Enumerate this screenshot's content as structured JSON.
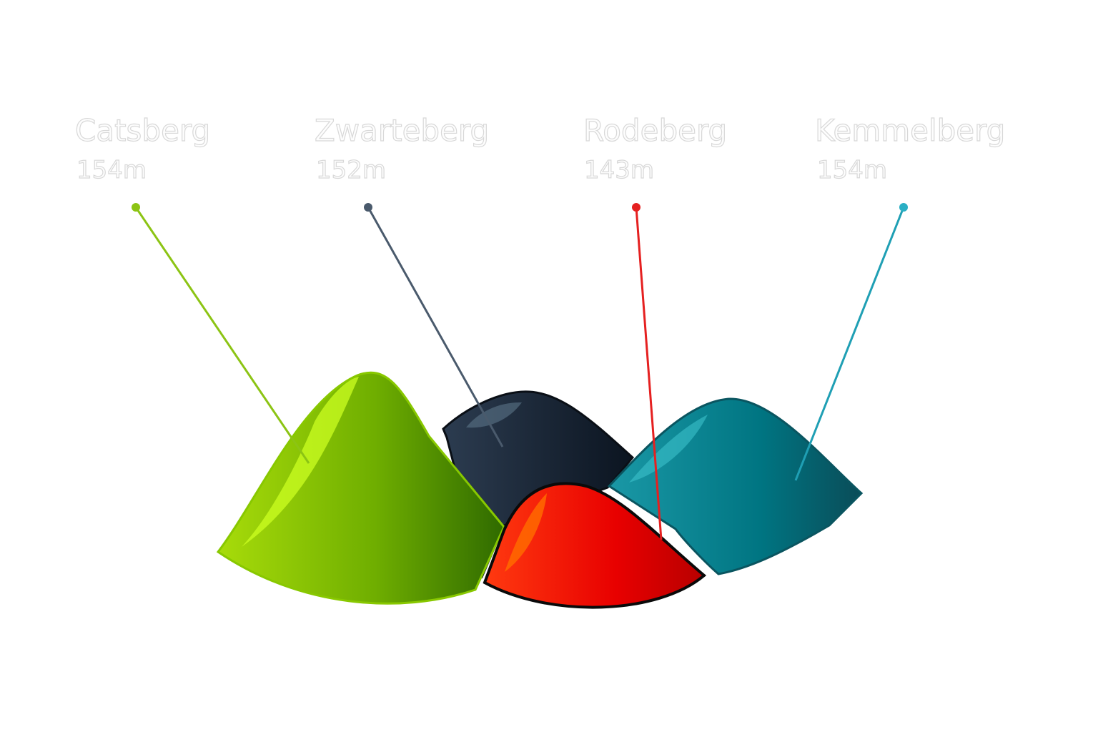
{
  "hills": [
    {
      "name": "Catsberg",
      "height": "154m"
    },
    {
      "name": "Zwarteberg",
      "height": "152m"
    },
    {
      "name": "Rodeberg",
      "height": "143m"
    },
    {
      "name": "Kemmelberg",
      "height": "154m"
    }
  ]
}
